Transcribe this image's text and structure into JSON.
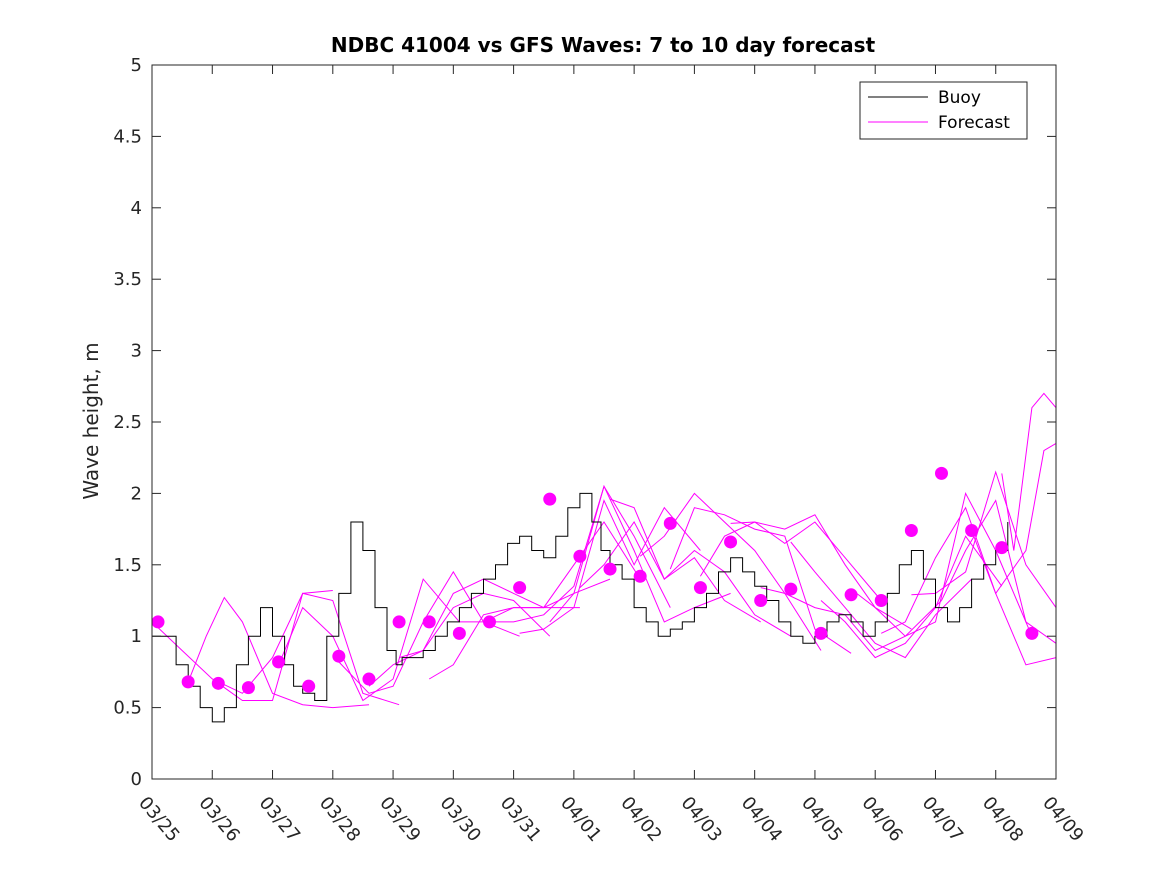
{
  "chart_data": {
    "type": "line",
    "title": "NDBC 41004 vs GFS Waves: 7 to 10 day forecast",
    "xlabel": "",
    "ylabel": "Wave height, m",
    "xlim": [
      0,
      15
    ],
    "ylim": [
      0,
      5
    ],
    "x_tick_labels": [
      "03/25",
      "03/26",
      "03/27",
      "03/28",
      "03/29",
      "03/30",
      "03/31",
      "04/01",
      "04/02",
      "04/03",
      "04/04",
      "04/05",
      "04/06",
      "04/07",
      "04/08",
      "04/09"
    ],
    "y_tick_labels": [
      "0",
      "0.5",
      "1",
      "1.5",
      "2",
      "2.5",
      "3",
      "3.5",
      "4",
      "4.5",
      "5"
    ],
    "y_ticks": [
      0,
      0.5,
      1,
      1.5,
      2,
      2.5,
      3,
      3.5,
      4,
      4.5,
      5
    ],
    "grid": false,
    "legend_position": "top-right",
    "legend": [
      {
        "label": "Buoy",
        "color": "#000000"
      },
      {
        "label": "Forecast",
        "color": "#ff00ff"
      }
    ],
    "series": [
      {
        "name": "Buoy",
        "color": "#000000",
        "x": [
          0,
          0.2,
          0.4,
          0.6,
          0.8,
          1.0,
          1.2,
          1.4,
          1.6,
          1.8,
          2.0,
          2.2,
          2.35,
          2.5,
          2.7,
          2.9,
          3.1,
          3.3,
          3.5,
          3.7,
          3.9,
          4.05,
          4.15,
          4.3,
          4.5,
          4.7,
          4.9,
          5.1,
          5.3,
          5.5,
          5.7,
          5.9,
          6.1,
          6.3,
          6.5,
          6.7,
          6.9,
          7.1,
          7.3,
          7.45,
          7.6,
          7.8,
          8.0,
          8.2,
          8.4,
          8.6,
          8.8,
          9.0,
          9.2,
          9.4,
          9.6,
          9.8,
          10.0,
          10.2,
          10.4,
          10.6,
          10.8,
          11.0,
          11.2,
          11.4,
          11.6,
          11.8,
          12.0,
          12.2,
          12.4,
          12.6,
          12.8,
          13.0,
          13.2,
          13.4,
          13.6,
          13.8,
          14.0,
          14.2
        ],
        "y": [
          1.0,
          1.0,
          0.8,
          0.65,
          0.5,
          0.4,
          0.5,
          0.8,
          1.0,
          1.2,
          1.0,
          0.8,
          0.65,
          0.6,
          0.55,
          1.0,
          1.3,
          1.8,
          1.6,
          1.2,
          0.9,
          0.8,
          0.85,
          0.85,
          0.9,
          1.0,
          1.1,
          1.2,
          1.3,
          1.4,
          1.5,
          1.65,
          1.7,
          1.6,
          1.55,
          1.7,
          1.9,
          2.0,
          1.8,
          1.6,
          1.5,
          1.4,
          1.2,
          1.1,
          1.0,
          1.05,
          1.1,
          1.2,
          1.3,
          1.45,
          1.55,
          1.45,
          1.35,
          1.25,
          1.1,
          1.0,
          0.95,
          1.0,
          1.1,
          1.15,
          1.1,
          1.0,
          1.1,
          1.3,
          1.5,
          1.6,
          1.4,
          1.2,
          1.1,
          1.2,
          1.4,
          1.5,
          1.6,
          1.8
        ]
      }
    ],
    "forecast_lines": [
      {
        "name": "Forecast",
        "color": "#ff00ff",
        "x": [
          0.0,
          0.5,
          1.0,
          1.5,
          2.0,
          2.5,
          3.0
        ],
        "y": [
          1.1,
          0.9,
          0.7,
          0.6,
          0.85,
          1.3,
          1.32
        ]
      },
      {
        "name": "Forecast",
        "color": "#ff00ff",
        "x": [
          0.6,
          0.9,
          1.2,
          1.5,
          2.0,
          2.5,
          3.0,
          3.6
        ],
        "y": [
          0.68,
          1.0,
          1.27,
          1.1,
          0.6,
          0.52,
          0.5,
          0.52
        ]
      },
      {
        "name": "Forecast",
        "color": "#ff00ff",
        "x": [
          1.1,
          1.5,
          2.0,
          2.5,
          3.0,
          3.5,
          4.1
        ],
        "y": [
          0.67,
          0.55,
          0.55,
          1.3,
          1.25,
          0.6,
          0.52
        ]
      },
      {
        "name": "Forecast",
        "color": "#ff00ff",
        "x": [
          2.1,
          2.5,
          3.0,
          3.5,
          4.0,
          4.5,
          5.1
        ],
        "y": [
          0.8,
          1.2,
          1.0,
          0.55,
          0.7,
          1.4,
          1.1
        ]
      },
      {
        "name": "Forecast",
        "color": "#ff00ff",
        "x": [
          3.1,
          3.6,
          4.0,
          4.5,
          5.0,
          5.5,
          6.1
        ],
        "y": [
          0.82,
          0.6,
          0.65,
          1.1,
          1.45,
          1.1,
          1.0
        ]
      },
      {
        "name": "Forecast",
        "color": "#ff00ff",
        "x": [
          3.6,
          4.0,
          4.5,
          5.0,
          5.5,
          6.0,
          6.6
        ],
        "y": [
          0.65,
          0.8,
          0.9,
          1.2,
          1.3,
          1.25,
          1.0
        ]
      },
      {
        "name": "Forecast",
        "color": "#ff00ff",
        "x": [
          4.1,
          4.5,
          5.0,
          5.5,
          6.0,
          6.5,
          7.1
        ],
        "y": [
          0.85,
          0.9,
          1.3,
          1.4,
          1.3,
          1.2,
          1.2
        ]
      },
      {
        "name": "Forecast",
        "color": "#ff00ff",
        "x": [
          4.6,
          5.0,
          5.5,
          6.0,
          6.5,
          7.0,
          7.6
        ],
        "y": [
          0.7,
          0.8,
          1.15,
          1.2,
          1.2,
          1.3,
          1.4
        ]
      },
      {
        "name": "Forecast",
        "color": "#ff00ff",
        "x": [
          5.1,
          5.5,
          6.0,
          6.5,
          7.0,
          7.5,
          8.1
        ],
        "y": [
          1.1,
          1.1,
          1.2,
          1.2,
          1.5,
          1.8,
          1.4
        ]
      },
      {
        "name": "Forecast",
        "color": "#ff00ff",
        "x": [
          5.6,
          6.0,
          6.5,
          7.0,
          7.5,
          8.0,
          8.6
        ],
        "y": [
          1.1,
          1.1,
          1.15,
          1.35,
          2.05,
          1.7,
          1.2
        ]
      },
      {
        "name": "Forecast",
        "color": "#ff00ff",
        "x": [
          6.1,
          6.5,
          7.0,
          7.5,
          8.0,
          8.5,
          9.1
        ],
        "y": [
          1.02,
          1.05,
          1.2,
          1.95,
          1.5,
          1.9,
          1.6
        ]
      },
      {
        "name": "Forecast",
        "color": "#ff00ff",
        "x": [
          6.6,
          7.0,
          7.5,
          8.0,
          8.5,
          9.0,
          9.6
        ],
        "y": [
          1.1,
          1.3,
          2.05,
          1.6,
          1.1,
          1.2,
          1.3
        ]
      },
      {
        "name": "Forecast",
        "color": "#ff00ff",
        "x": [
          7.1,
          7.5,
          8.0,
          8.5,
          9.0,
          9.5,
          10.1
        ],
        "y": [
          1.34,
          1.5,
          1.8,
          1.4,
          1.55,
          1.25,
          1.1
        ]
      },
      {
        "name": "Forecast",
        "color": "#ff00ff",
        "x": [
          7.6,
          8.0,
          8.5,
          9.0,
          9.5,
          10.0,
          10.6
        ],
        "y": [
          1.96,
          1.9,
          1.4,
          1.6,
          1.45,
          1.15,
          1.0
        ]
      },
      {
        "name": "Forecast",
        "color": "#ff00ff",
        "x": [
          8.1,
          8.5,
          9.0,
          9.5,
          10.0,
          10.5,
          11.1
        ],
        "y": [
          1.56,
          1.7,
          2.0,
          1.8,
          1.6,
          1.3,
          0.9
        ]
      },
      {
        "name": "Forecast",
        "color": "#ff00ff",
        "x": [
          8.6,
          9.0,
          9.5,
          10.0,
          10.5,
          11.0,
          11.6
        ],
        "y": [
          1.47,
          1.9,
          1.85,
          1.75,
          1.7,
          1.05,
          0.88
        ]
      },
      {
        "name": "Forecast",
        "color": "#ff00ff",
        "x": [
          9.1,
          9.5,
          10.0,
          10.5,
          11.0,
          11.5,
          12.1
        ],
        "y": [
          1.42,
          1.7,
          1.8,
          1.65,
          1.8,
          1.55,
          1.25
        ]
      },
      {
        "name": "Forecast",
        "color": "#ff00ff",
        "x": [
          9.6,
          10.0,
          10.5,
          11.0,
          11.5,
          12.0,
          12.6
        ],
        "y": [
          1.79,
          1.8,
          1.75,
          1.85,
          1.5,
          1.2,
          1.05
        ]
      },
      {
        "name": "Forecast",
        "color": "#ff00ff",
        "x": [
          10.1,
          10.5,
          11.0,
          11.5,
          12.0,
          12.5,
          13.1
        ],
        "y": [
          1.34,
          1.3,
          1.2,
          1.15,
          0.9,
          1.0,
          1.25
        ]
      },
      {
        "name": "Forecast",
        "color": "#ff00ff",
        "x": [
          10.6,
          11.0,
          11.5,
          12.0,
          12.5,
          13.0,
          13.6
        ],
        "y": [
          1.66,
          1.45,
          1.2,
          0.95,
          0.85,
          1.15,
          1.4
        ]
      },
      {
        "name": "Forecast",
        "color": "#ff00ff",
        "x": [
          11.1,
          11.5,
          12.0,
          12.5,
          13.0,
          13.5,
          14.1
        ],
        "y": [
          1.25,
          1.1,
          0.85,
          0.95,
          1.2,
          1.7,
          1.35
        ]
      },
      {
        "name": "Forecast",
        "color": "#ff00ff",
        "x": [
          11.6,
          12.0,
          12.5,
          13.0,
          13.5,
          14.0,
          14.6
        ],
        "y": [
          1.33,
          1.2,
          1.0,
          1.1,
          2.0,
          1.6,
          1.0
        ]
      },
      {
        "name": "Forecast",
        "color": "#ff00ff",
        "x": [
          12.1,
          12.5,
          13.0,
          13.5,
          14.0,
          14.5,
          15.0
        ],
        "y": [
          1.02,
          1.1,
          1.55,
          1.9,
          1.3,
          0.8,
          0.85
        ]
      },
      {
        "name": "Forecast",
        "color": "#ff00ff",
        "x": [
          12.6,
          13.0,
          13.5,
          14.0,
          14.5,
          15.0
        ],
        "y": [
          1.29,
          1.3,
          1.45,
          2.15,
          1.5,
          1.2
        ]
      },
      {
        "name": "Forecast",
        "color": "#ff00ff",
        "x": [
          13.1,
          13.5,
          14.0,
          14.5,
          15.0
        ],
        "y": [
          1.25,
          1.6,
          1.95,
          1.1,
          0.95
        ]
      },
      {
        "name": "Forecast",
        "color": "#ff00ff",
        "x": [
          13.6,
          14.0,
          14.5,
          14.8,
          15.0
        ],
        "y": [
          1.74,
          1.3,
          1.6,
          2.3,
          2.35
        ]
      },
      {
        "name": "Forecast",
        "color": "#ff00ff",
        "x": [
          14.1,
          14.3,
          14.6,
          14.8,
          15.0
        ],
        "y": [
          2.14,
          1.6,
          2.6,
          2.7,
          2.6
        ]
      }
    ],
    "forecast_points": {
      "name": "Forecast",
      "color": "#ff00ff",
      "x": [
        0.1,
        0.6,
        1.1,
        1.6,
        2.1,
        2.6,
        3.1,
        3.6,
        4.1,
        4.6,
        5.1,
        5.6,
        6.1,
        6.6,
        7.1,
        7.6,
        8.1,
        8.6,
        9.1,
        9.6,
        10.1,
        10.6,
        11.1,
        11.6,
        12.1,
        12.6,
        13.1,
        13.6,
        14.1,
        14.6
      ],
      "y": [
        1.1,
        0.68,
        0.67,
        0.64,
        0.82,
        0.65,
        0.86,
        0.7,
        1.1,
        1.1,
        1.02,
        1.1,
        1.34,
        1.96,
        1.56,
        1.47,
        1.42,
        1.79,
        1.34,
        1.66,
        1.25,
        1.33,
        1.02,
        1.29,
        1.25,
        1.74,
        2.14,
        1.74,
        1.62,
        1.02
      ]
    }
  }
}
